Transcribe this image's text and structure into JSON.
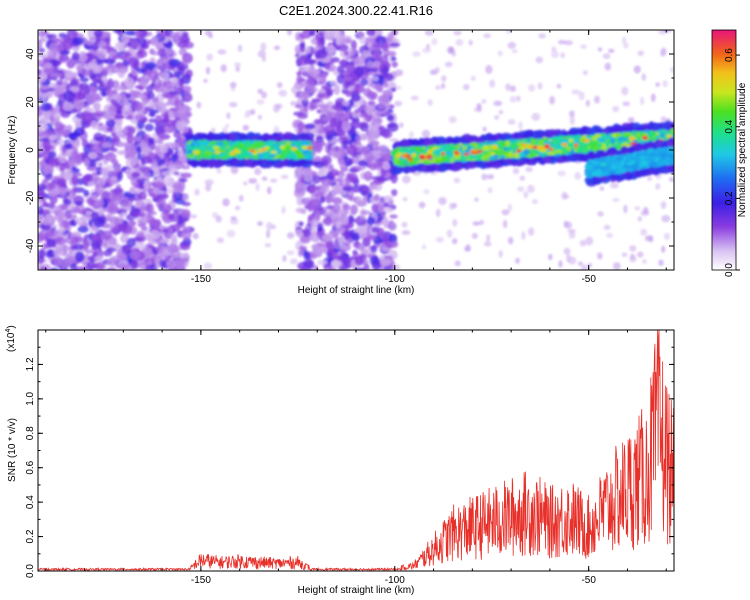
{
  "title": "C2E1.2024.300.22.41.R16",
  "chart_data": [
    {
      "type": "heatmap",
      "xlabel": "Height of straight line (km)",
      "ylabel": "Frequency (Hz)",
      "xlim": [
        -192,
        -28
      ],
      "ylim": [
        -50,
        50
      ],
      "xticks": [
        -150,
        -100,
        -50
      ],
      "yticks": [
        -40,
        -20,
        0,
        20,
        40
      ],
      "colorbar": {
        "label": "Normalized spectral amplitude",
        "range": [
          0,
          0.67
        ],
        "ticks": [
          "0.0",
          "0.2",
          "0.4",
          "0.6"
        ]
      },
      "description_values": {
        "noise_regions_km": [
          [
            -192,
            -153
          ],
          [
            -125,
            -100
          ]
        ],
        "signal_segments": [
          {
            "x_start": -153,
            "x_end": -122,
            "freq_hz": 0,
            "peak_amplitude": 0.6
          },
          {
            "x_start": -100,
            "x_end": -28,
            "freq_start_hz": -3,
            "freq_end_hz": 5,
            "peak_amplitude": 0.65
          },
          {
            "x_start": -50,
            "x_end": -28,
            "freq_start_hz": -8,
            "freq_end_hz": -2,
            "peak_amplitude": 0.35
          }
        ]
      }
    },
    {
      "type": "line",
      "xlabel": "Height of straight line (km)",
      "ylabel": "SNR (10 * v/v)",
      "scale_label": "(x10",
      "scale_exp": "4",
      "scale_close": ")",
      "xlim": [
        -192,
        -28
      ],
      "ylim": [
        0,
        1.4
      ],
      "xticks": [
        -150,
        -100,
        -50
      ],
      "yticks": [
        "0.0",
        "0.2",
        "0.4",
        "0.6",
        "0.8",
        "1.0",
        "1.2"
      ],
      "series": [
        {
          "color": "#e8302a",
          "x": [
            -192,
            -160,
            -153,
            -150,
            -145,
            -140,
            -135,
            -130,
            -125,
            -122,
            -110,
            -100,
            -95,
            -90,
            -85,
            -80,
            -75,
            -70,
            -65,
            -60,
            -55,
            -50,
            -45,
            -40,
            -35,
            -32,
            -30,
            -28
          ],
          "y": [
            0.01,
            0.01,
            0.02,
            0.1,
            0.08,
            0.09,
            0.08,
            0.07,
            0.08,
            0.03,
            0.02,
            0.02,
            0.05,
            0.2,
            0.35,
            0.4,
            0.45,
            0.5,
            0.55,
            0.45,
            0.5,
            0.4,
            0.6,
            0.75,
            0.9,
            1.35,
            1.05,
            0.85
          ]
        }
      ]
    }
  ]
}
